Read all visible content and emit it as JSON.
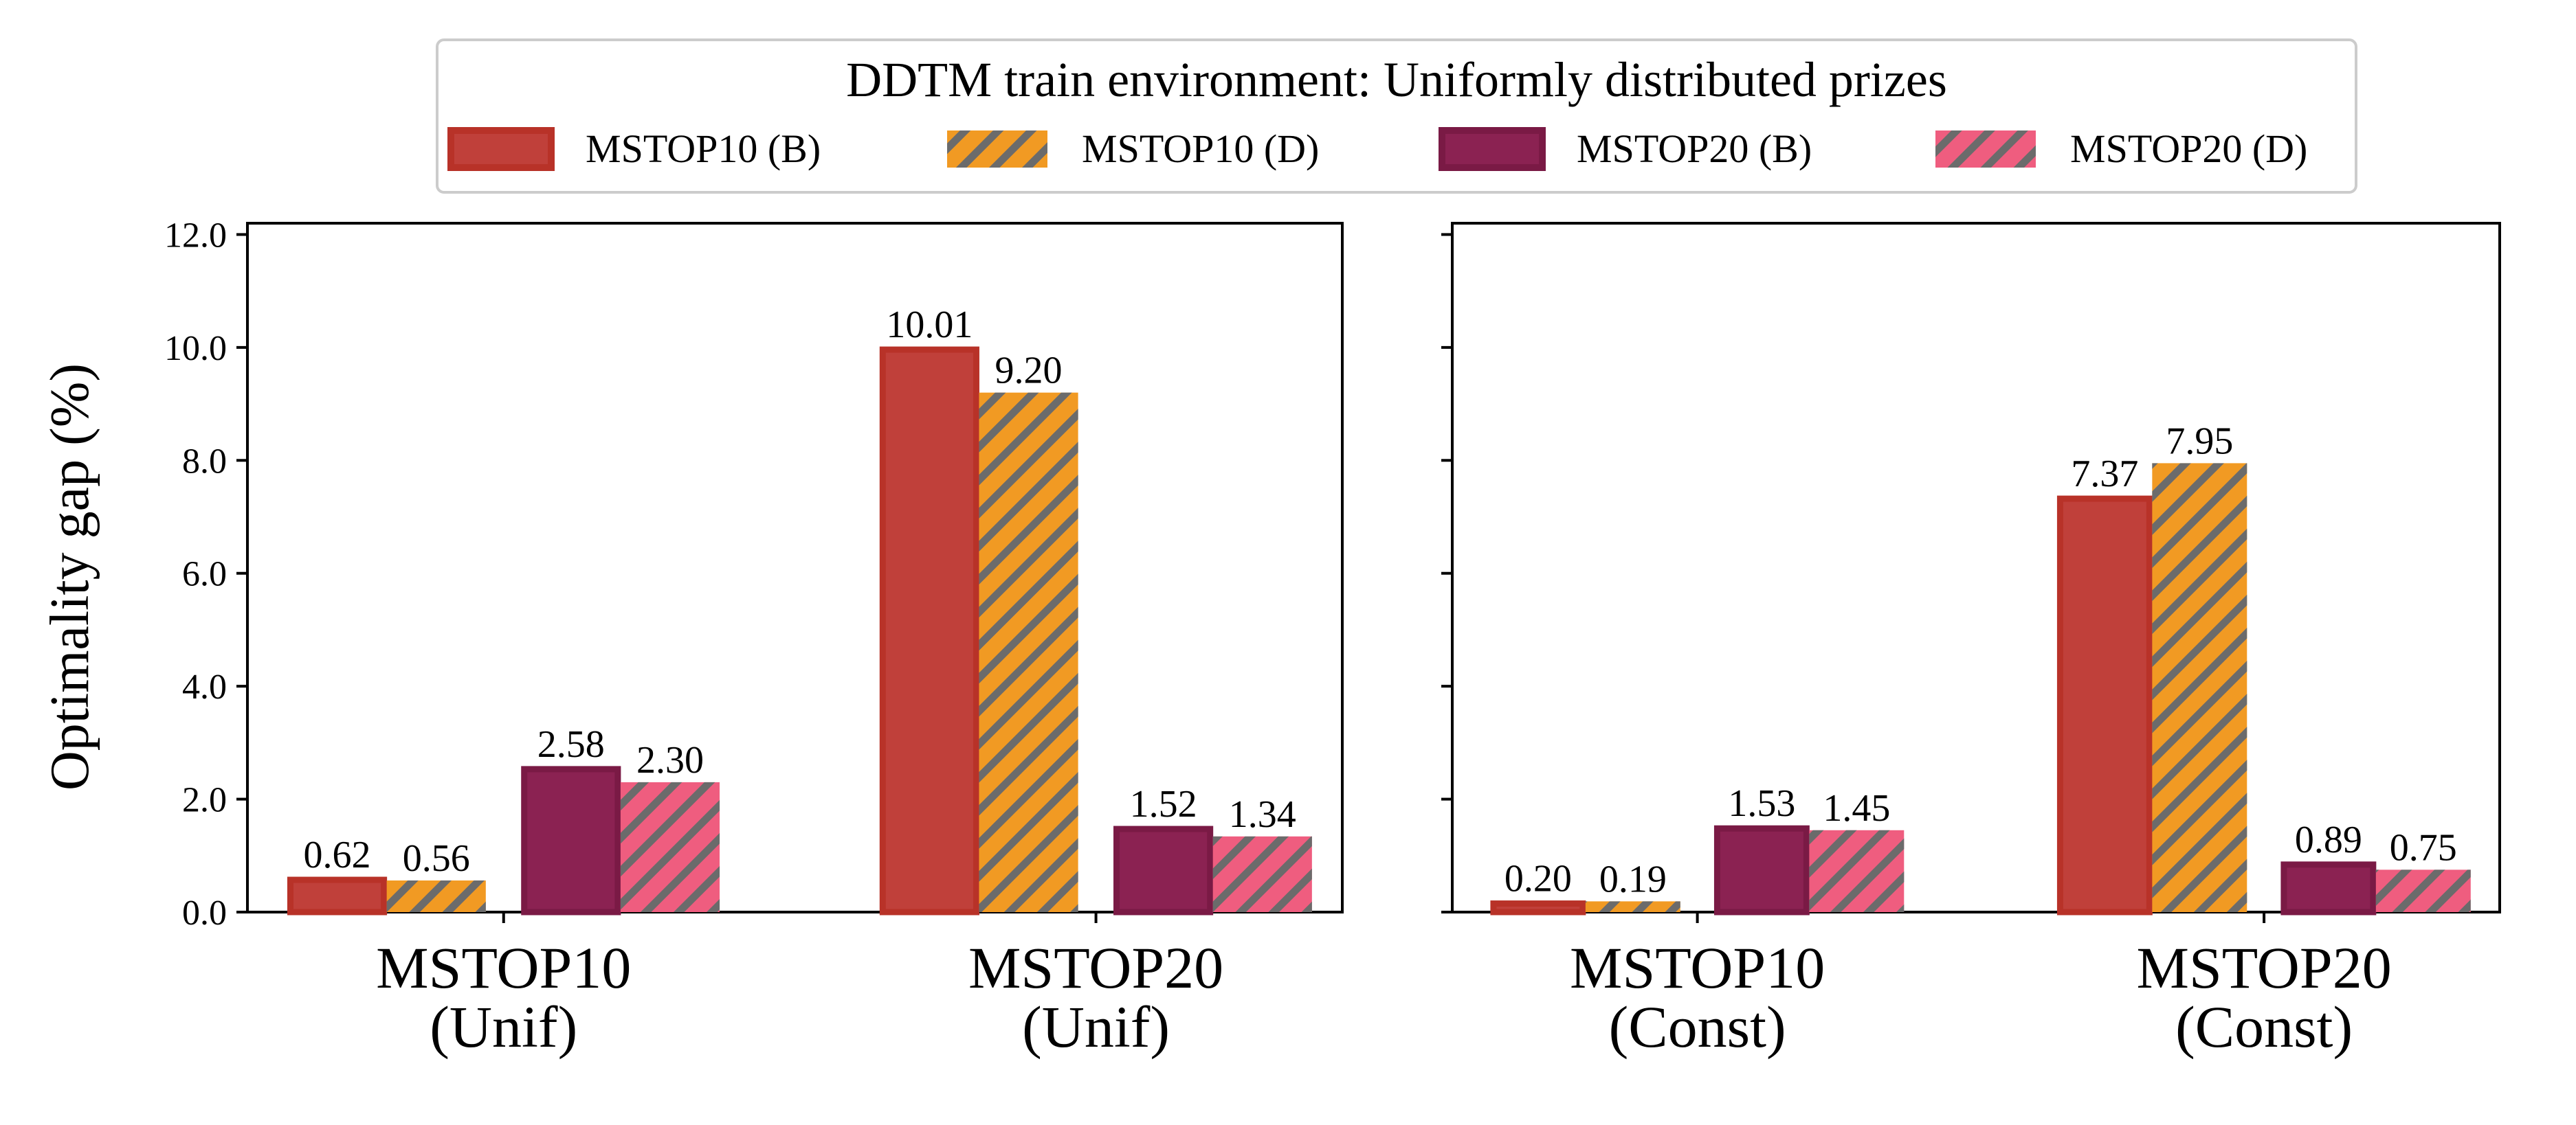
{
  "chart_data": {
    "type": "bar",
    "legend": {
      "title": "DDTM train environment: Uniformly distributed prizes",
      "placement": "top-center",
      "entries": [
        "MSTOP10 (B)",
        "MSTOP10 (D)",
        "MSTOP20 (B)",
        "MSTOP20 (D)"
      ]
    },
    "ylabel": "Optimality gap (%)",
    "ylim": [
      0,
      12.2
    ],
    "yticks": [
      "0.0",
      "2.0",
      "4.0",
      "6.0",
      "8.0",
      "10.0",
      "12.0"
    ],
    "shared_y": true,
    "grid": false,
    "series": [
      {
        "name": "MSTOP10 (B)",
        "color": "#c0403a",
        "edge": "#b83228",
        "hatch": false
      },
      {
        "name": "MSTOP10 (D)",
        "color": "#f19a23",
        "hatch": true
      },
      {
        "name": "MSTOP20 (B)",
        "color": "#8b2252",
        "edge": "#7a1a45",
        "hatch": false
      },
      {
        "name": "MSTOP20 (D)",
        "color": "#ef5d7f",
        "hatch": true
      }
    ],
    "hatch_color": "#6b6b6b",
    "panels": [
      {
        "categories": [
          "MSTOP10\n(Unif)",
          "MSTOP20\n(Unif)"
        ],
        "values": [
          [
            0.62,
            0.56,
            2.58,
            2.3
          ],
          [
            10.01,
            9.2,
            1.52,
            1.34
          ]
        ],
        "labels": [
          [
            "0.62",
            "0.56",
            "2.58",
            "2.30"
          ],
          [
            "10.01",
            "9.20",
            "1.52",
            "1.34"
          ]
        ]
      },
      {
        "categories": [
          "MSTOP10\n(Const)",
          "MSTOP20\n(Const)"
        ],
        "values": [
          [
            0.2,
            0.19,
            1.53,
            1.45
          ],
          [
            7.37,
            7.95,
            0.89,
            0.75
          ]
        ],
        "labels": [
          [
            "0.20",
            "0.19",
            "1.53",
            "1.45"
          ],
          [
            "7.37",
            "7.95",
            "0.89",
            "0.75"
          ]
        ]
      }
    ]
  }
}
